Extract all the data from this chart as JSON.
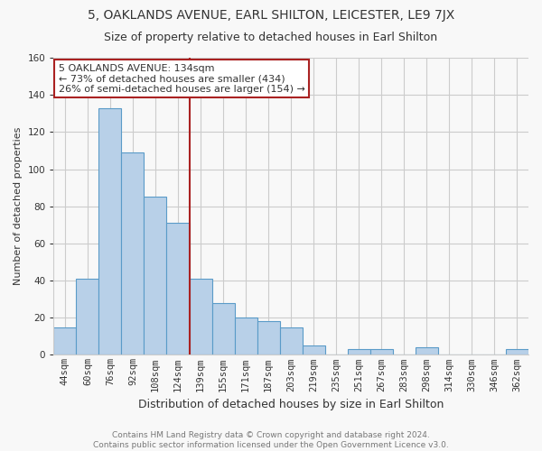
{
  "title": "5, OAKLANDS AVENUE, EARL SHILTON, LEICESTER, LE9 7JX",
  "subtitle": "Size of property relative to detached houses in Earl Shilton",
  "xlabel": "Distribution of detached houses by size in Earl Shilton",
  "ylabel": "Number of detached properties",
  "footer_line1": "Contains HM Land Registry data © Crown copyright and database right 2024.",
  "footer_line2": "Contains public sector information licensed under the Open Government Licence v3.0.",
  "bar_labels": [
    "44sqm",
    "60sqm",
    "76sqm",
    "92sqm",
    "108sqm",
    "124sqm",
    "139sqm",
    "155sqm",
    "171sqm",
    "187sqm",
    "203sqm",
    "219sqm",
    "235sqm",
    "251sqm",
    "267sqm",
    "283sqm",
    "298sqm",
    "314sqm",
    "330sqm",
    "346sqm",
    "362sqm"
  ],
  "bar_values": [
    15,
    41,
    133,
    109,
    85,
    71,
    41,
    28,
    20,
    18,
    15,
    5,
    0,
    3,
    3,
    0,
    4,
    0,
    0,
    0,
    3
  ],
  "bar_color": "#b8d0e8",
  "bar_edge_color": "#5a9bc8",
  "red_line_x": 5.5,
  "highlight_line_color": "#aa2222",
  "annotation_title": "5 OAKLANDS AVENUE: 134sqm",
  "annotation_line1": "← 73% of detached houses are smaller (434)",
  "annotation_line2": "26% of semi-detached houses are larger (154) →",
  "annotation_box_edge_color": "#aa2222",
  "annotation_box_face_color": "#ffffff",
  "ylim": [
    0,
    160
  ],
  "yticks": [
    0,
    20,
    40,
    60,
    80,
    100,
    120,
    140,
    160
  ],
  "grid_color": "#cccccc",
  "background_color": "#f8f8f8",
  "title_fontsize": 10,
  "subtitle_fontsize": 9,
  "xlabel_fontsize": 9,
  "ylabel_fontsize": 8,
  "tick_fontsize": 7.5,
  "footer_fontsize": 6.5,
  "annotation_fontsize": 8
}
